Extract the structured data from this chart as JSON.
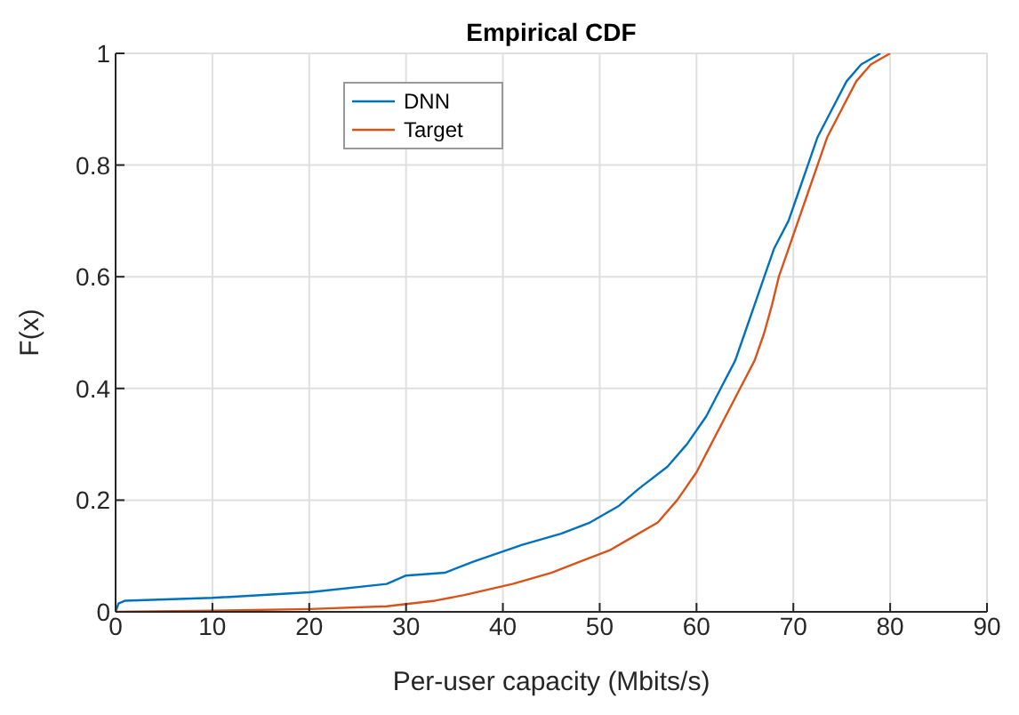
{
  "chart_data": {
    "type": "line",
    "title": "Empirical CDF",
    "xlabel": "Per-user capacity (Mbits/s)",
    "ylabel": "F(x)",
    "xlim": [
      0,
      90
    ],
    "ylim": [
      0,
      1
    ],
    "xticks": [
      0,
      10,
      20,
      30,
      40,
      50,
      60,
      70,
      80,
      90
    ],
    "yticks": [
      0,
      0.2,
      0.4,
      0.6,
      0.8,
      1
    ],
    "grid": true,
    "legend": "top left",
    "series": [
      {
        "name": "DNN",
        "color": "#0072bd",
        "x": [
          0,
          0.3,
          1,
          10,
          20,
          28,
          30,
          34,
          37,
          42,
          46,
          49,
          52,
          54,
          57,
          59,
          61,
          62.5,
          64,
          65,
          66,
          67,
          68,
          69.5,
          70.5,
          71.5,
          72.5,
          74,
          75.5,
          77,
          79
        ],
        "values": [
          0,
          0.015,
          0.02,
          0.025,
          0.035,
          0.05,
          0.065,
          0.07,
          0.09,
          0.12,
          0.14,
          0.16,
          0.19,
          0.22,
          0.26,
          0.3,
          0.35,
          0.4,
          0.45,
          0.5,
          0.55,
          0.6,
          0.65,
          0.7,
          0.75,
          0.8,
          0.85,
          0.9,
          0.95,
          0.98,
          1
        ]
      },
      {
        "name": "Target",
        "color": "#d95319",
        "x": [
          0,
          10,
          20,
          28,
          33,
          36,
          41,
          45,
          48,
          51,
          53,
          56,
          58,
          60,
          61.5,
          63,
          64.5,
          66,
          67,
          67.8,
          68.5,
          69.5,
          70.5,
          71.5,
          72.5,
          73.5,
          75,
          76.5,
          78,
          80
        ],
        "values": [
          0,
          0.002,
          0.005,
          0.01,
          0.02,
          0.03,
          0.05,
          0.07,
          0.09,
          0.11,
          0.13,
          0.16,
          0.2,
          0.25,
          0.3,
          0.35,
          0.4,
          0.45,
          0.5,
          0.55,
          0.6,
          0.65,
          0.7,
          0.75,
          0.8,
          0.85,
          0.9,
          0.95,
          0.98,
          1
        ]
      }
    ]
  }
}
